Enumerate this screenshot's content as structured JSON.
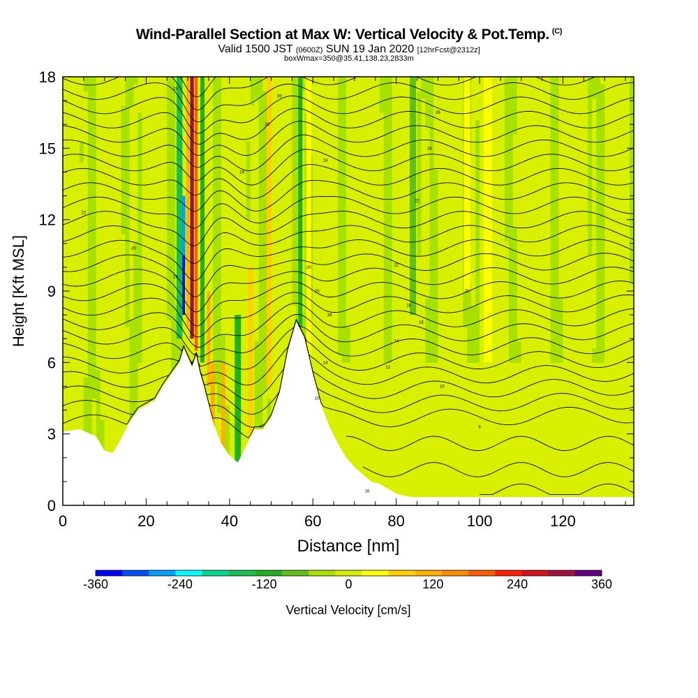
{
  "title": {
    "main": "Wind-Parallel Section at Max W: Vertical Velocity & Pot.Temp.",
    "main_suffix": "(C)",
    "valid_prefix": "Valid 1500 JST",
    "valid_utc": "(0600Z)",
    "valid_date": "SUN 19 Jan 2020",
    "forecast": "[12hrFcst@2312z]",
    "box_info": "boxWmax=350@35.41,138.23,2833m"
  },
  "chart_data": {
    "type": "heatmap",
    "xlabel": "Distance [nm]",
    "ylabel": "Height [Kft MSL]",
    "xlim": [
      0,
      137
    ],
    "ylim": [
      0,
      18
    ],
    "x_ticks": [
      0,
      20,
      40,
      60,
      80,
      100,
      120
    ],
    "y_ticks": [
      0,
      3,
      6,
      9,
      12,
      15,
      18
    ],
    "colorbar": {
      "label": "Vertical Velocity [cm/s]",
      "min": -360,
      "max": 360,
      "step": 40,
      "tick_values": [
        -360,
        -240,
        -120,
        0,
        120,
        240,
        360
      ],
      "tick_labels": [
        "-360",
        "-240",
        "-120",
        "0",
        "120",
        "240",
        "360"
      ],
      "colors": [
        "#0000ff",
        "#0050ff",
        "#00a0ff",
        "#00ffff",
        "#00d890",
        "#18c050",
        "#20b020",
        "#60c018",
        "#a8e000",
        "#d8f000",
        "#ffff00",
        "#ffd000",
        "#ffb000",
        "#ff8c00",
        "#ff5a00",
        "#ff1e00",
        "#d81020",
        "#a01040",
        "#600080"
      ]
    },
    "terrain_profile": {
      "x": [
        0,
        4,
        8,
        10,
        12,
        14,
        16,
        18,
        20,
        22,
        24,
        26,
        28,
        29,
        30,
        31,
        32,
        33,
        34,
        36,
        38,
        40,
        42,
        44,
        46,
        48,
        50,
        52,
        54,
        56,
        58,
        60,
        62,
        64,
        66,
        68,
        70,
        72,
        74,
        76,
        78,
        80,
        82,
        84,
        137
      ],
      "height": [
        3.1,
        3.2,
        2.9,
        2.3,
        2.2,
        2.8,
        3.5,
        4.0,
        4.2,
        4.4,
        5.0,
        5.5,
        6.0,
        6.6,
        6.2,
        5.8,
        6.3,
        5.5,
        4.9,
        3.5,
        2.6,
        2.1,
        1.8,
        2.5,
        3.2,
        3.2,
        3.7,
        4.7,
        6.5,
        7.7,
        7.0,
        5.5,
        4.2,
        3.3,
        2.6,
        2.0,
        1.6,
        1.3,
        1.0,
        0.9,
        0.7,
        0.5,
        0.4,
        0.35,
        0.35
      ]
    },
    "velocity_features": [
      {
        "x": 28.0,
        "zmin": 7.0,
        "zmax": 18.0,
        "value": -160,
        "width": 1.4
      },
      {
        "x": 29.0,
        "zmin": 10.0,
        "zmax": 13.0,
        "value": -270,
        "width": 0.8
      },
      {
        "x": 29.0,
        "zmin": 8.0,
        "zmax": 10.5,
        "value": -350,
        "width": 0.6
      },
      {
        "x": 30.0,
        "zmin": 7.5,
        "zmax": 18.0,
        "value": 120,
        "width": 0.7
      },
      {
        "x": 31.0,
        "zmin": 7.0,
        "zmax": 18.0,
        "value": 330,
        "width": 0.9
      },
      {
        "x": 32.0,
        "zmin": 6.5,
        "zmax": 18.0,
        "value": 200,
        "width": 0.7
      },
      {
        "x": 33.5,
        "zmin": 6.0,
        "zmax": 18.0,
        "value": -100,
        "width": 1.0
      },
      {
        "x": 35.0,
        "zmin": 5.0,
        "zmax": 9.0,
        "value": 150,
        "width": 0.8
      },
      {
        "x": 36.0,
        "zmin": 2.5,
        "zmax": 6.0,
        "value": 130,
        "width": 1.0
      },
      {
        "x": 38.5,
        "zmin": 2.0,
        "zmax": 6.0,
        "value": 150,
        "width": 1.0
      },
      {
        "x": 42.0,
        "zmin": 1.8,
        "zmax": 8.0,
        "value": -110,
        "width": 1.5
      },
      {
        "x": 45.0,
        "zmin": 3.0,
        "zmax": 10.0,
        "value": 80,
        "width": 1.2
      },
      {
        "x": 49.5,
        "zmin": 5.0,
        "zmax": 18.0,
        "value": 90,
        "width": 1.2
      },
      {
        "x": 57.0,
        "zmin": 7.5,
        "zmax": 18.0,
        "value": -120,
        "width": 1.0
      },
      {
        "x": 59.0,
        "zmin": 5.0,
        "zmax": 18.0,
        "value": 70,
        "width": 1.2
      },
      {
        "x": 84.0,
        "zmin": 8.0,
        "zmax": 18.0,
        "value": -80,
        "width": 1.5
      },
      {
        "x": 97.0,
        "zmin": 9.0,
        "zmax": 18.0,
        "value": 70,
        "width": 1.5
      },
      {
        "x": 102.0,
        "zmin": 6.0,
        "zmax": 18.0,
        "value": 60,
        "width": 2.0
      }
    ],
    "isentrope_labels": [
      {
        "x": 27,
        "y": 17.5,
        "text": "19"
      },
      {
        "x": 52,
        "y": 17.2,
        "text": "30"
      },
      {
        "x": 90,
        "y": 16.5,
        "text": "26"
      },
      {
        "x": 49,
        "y": 16.0,
        "text": "28"
      },
      {
        "x": 43,
        "y": 14.0,
        "text": "24"
      },
      {
        "x": 63,
        "y": 14.5,
        "text": "24"
      },
      {
        "x": 88,
        "y": 15.0,
        "text": "24"
      },
      {
        "x": 5,
        "y": 12.3,
        "text": "22"
      },
      {
        "x": 85,
        "y": 12.8,
        "text": "22"
      },
      {
        "x": 17,
        "y": 10.8,
        "text": "20"
      },
      {
        "x": 80,
        "y": 10.1,
        "text": "22"
      },
      {
        "x": 27,
        "y": 9.6,
        "text": "19"
      },
      {
        "x": 59,
        "y": 10.0,
        "text": "20"
      },
      {
        "x": 61,
        "y": 9.0,
        "text": "20"
      },
      {
        "x": 64,
        "y": 8.0,
        "text": "18"
      },
      {
        "x": 97,
        "y": 9.0,
        "text": "20"
      },
      {
        "x": 83,
        "y": 8.4,
        "text": "18"
      },
      {
        "x": 86,
        "y": 7.7,
        "text": "16"
      },
      {
        "x": 80,
        "y": 6.9,
        "text": "14"
      },
      {
        "x": 63,
        "y": 6.0,
        "text": "14"
      },
      {
        "x": 78,
        "y": 5.8,
        "text": "12"
      },
      {
        "x": 91,
        "y": 5.0,
        "text": "10"
      },
      {
        "x": 61,
        "y": 4.5,
        "text": "10"
      },
      {
        "x": 100,
        "y": 3.3,
        "text": "8"
      },
      {
        "x": 73,
        "y": 0.6,
        "text": "16"
      }
    ]
  }
}
